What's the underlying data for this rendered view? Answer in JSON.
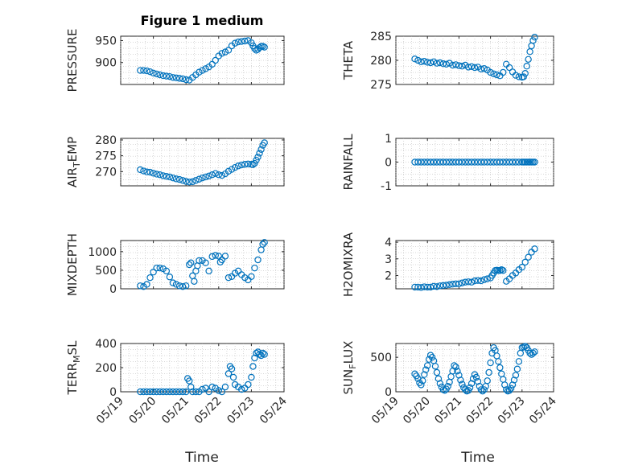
{
  "figure": {
    "title": "Figure 1 medium",
    "xlabel": "Time",
    "xtick_labels": [
      "05/19",
      "05/20",
      "05/21",
      "05/22",
      "05/23",
      "05/24"
    ],
    "marker_color": "#0072BD"
  },
  "chart_data": [
    {
      "type": "scatter",
      "ylabel_main": "PRESSURE",
      "ylabel_sub": "",
      "yticks": [
        900,
        950
      ],
      "ylim": [
        850,
        960
      ],
      "xlim": [
        0,
        5
      ],
      "grid": true,
      "x": [
        0.6,
        0.7,
        0.8,
        0.9,
        1.0,
        1.1,
        1.2,
        1.3,
        1.4,
        1.5,
        1.6,
        1.7,
        1.8,
        1.9,
        2.0,
        2.1,
        2.2,
        2.3,
        2.4,
        2.5,
        2.6,
        2.7,
        2.8,
        2.9,
        3.0,
        3.1,
        3.2,
        3.3,
        3.4,
        3.5,
        3.6,
        3.7,
        3.8,
        3.9,
        4.0,
        4.05,
        4.1,
        4.15,
        4.2,
        4.25,
        4.3,
        4.35,
        4.4
      ],
      "y": [
        882,
        882,
        881,
        879,
        876,
        874,
        872,
        870,
        869,
        868,
        866,
        865,
        864,
        863,
        861,
        860,
        866,
        872,
        878,
        882,
        886,
        890,
        896,
        905,
        915,
        921,
        924,
        928,
        938,
        944,
        947,
        948,
        949,
        950,
        945,
        938,
        932,
        928,
        930,
        934,
        937,
        937,
        935
      ]
    },
    {
      "type": "scatter",
      "ylabel_main": "THETA",
      "ylabel_sub": "",
      "yticks": [
        275,
        280,
        285
      ],
      "ylim": [
        275,
        285
      ],
      "xlim": [
        0,
        5
      ],
      "grid": true,
      "x": [
        0.6,
        0.7,
        0.8,
        0.9,
        1.0,
        1.1,
        1.2,
        1.3,
        1.4,
        1.5,
        1.6,
        1.7,
        1.8,
        1.9,
        2.0,
        2.1,
        2.2,
        2.3,
        2.4,
        2.5,
        2.6,
        2.7,
        2.8,
        2.9,
        3.0,
        3.1,
        3.2,
        3.3,
        3.4,
        3.5,
        3.6,
        3.7,
        3.8,
        3.9,
        4.0,
        4.05,
        4.1,
        4.15,
        4.2,
        4.25,
        4.3,
        4.35,
        4.4
      ],
      "y": [
        280.3,
        280.0,
        279.7,
        279.8,
        279.6,
        279.5,
        279.7,
        279.4,
        279.5,
        279.3,
        279.2,
        279.4,
        279.0,
        279.1,
        278.9,
        278.8,
        279.0,
        278.6,
        278.7,
        278.5,
        278.6,
        278.2,
        278.3,
        278.0,
        277.5,
        277.2,
        277.0,
        276.8,
        277.5,
        279.2,
        278.5,
        277.6,
        276.9,
        276.6,
        276.5,
        276.6,
        277.3,
        278.8,
        280.2,
        281.8,
        283.0,
        284.1,
        284.8
      ]
    },
    {
      "type": "scatter",
      "ylabel_main": "AIR",
      "ylabel_sub": "T",
      "ylabel_tail": "EMP",
      "yticks": [
        270,
        275,
        280
      ],
      "ylim": [
        265.5,
        280.5
      ],
      "xlim": [
        0,
        5
      ],
      "grid": true,
      "x": [
        0.6,
        0.7,
        0.8,
        0.9,
        1.0,
        1.1,
        1.2,
        1.3,
        1.4,
        1.5,
        1.6,
        1.7,
        1.8,
        1.9,
        2.0,
        2.1,
        2.2,
        2.3,
        2.4,
        2.5,
        2.6,
        2.7,
        2.8,
        2.9,
        3.0,
        3.1,
        3.2,
        3.3,
        3.4,
        3.5,
        3.6,
        3.7,
        3.8,
        3.9,
        4.0,
        4.05,
        4.1,
        4.15,
        4.2,
        4.25,
        4.3,
        4.35,
        4.4
      ],
      "y": [
        270.6,
        270.2,
        269.9,
        269.8,
        269.5,
        269.2,
        269.0,
        268.7,
        268.5,
        268.3,
        268.0,
        267.7,
        267.5,
        267.2,
        266.9,
        266.7,
        266.8,
        267.2,
        267.6,
        268.0,
        268.3,
        268.6,
        269.0,
        269.4,
        269.0,
        268.8,
        269.3,
        270.1,
        270.7,
        271.3,
        271.8,
        272.1,
        272.3,
        272.4,
        272.3,
        272.2,
        272.6,
        273.6,
        274.6,
        275.8,
        277.0,
        278.3,
        279.1
      ]
    },
    {
      "type": "scatter",
      "ylabel_main": "RAINFALL",
      "ylabel_sub": "",
      "yticks": [
        -1,
        0,
        1
      ],
      "ylim": [
        -1,
        1
      ],
      "xlim": [
        0,
        5
      ],
      "grid": true,
      "x": [
        0.6,
        0.7,
        0.8,
        0.9,
        1.0,
        1.1,
        1.2,
        1.3,
        1.4,
        1.5,
        1.6,
        1.7,
        1.8,
        1.9,
        2.0,
        2.1,
        2.2,
        2.3,
        2.4,
        2.5,
        2.6,
        2.7,
        2.8,
        2.9,
        3.0,
        3.1,
        3.2,
        3.3,
        3.4,
        3.5,
        3.6,
        3.7,
        3.8,
        3.9,
        4.0,
        4.05,
        4.1,
        4.15,
        4.2,
        4.25,
        4.3,
        4.35,
        4.4
      ],
      "y": [
        0,
        0,
        0,
        0,
        0,
        0,
        0,
        0,
        0,
        0,
        0,
        0,
        0,
        0,
        0,
        0,
        0,
        0,
        0,
        0,
        0,
        0,
        0,
        0,
        0,
        0,
        0,
        0,
        0,
        0,
        0,
        0,
        0,
        0,
        0,
        0,
        0,
        0,
        0,
        0,
        0,
        0,
        0
      ]
    },
    {
      "type": "scatter",
      "ylabel_main": "MIXDEPTH",
      "ylabel_sub": "",
      "yticks": [
        0,
        500,
        1000
      ],
      "ylim": [
        0,
        1300
      ],
      "xlim": [
        0,
        5
      ],
      "grid": true,
      "x": [
        0.6,
        0.7,
        0.8,
        0.9,
        1.0,
        1.1,
        1.2,
        1.3,
        1.4,
        1.5,
        1.6,
        1.7,
        1.8,
        1.9,
        2.0,
        2.1,
        2.15,
        2.2,
        2.25,
        2.3,
        2.35,
        2.4,
        2.5,
        2.6,
        2.7,
        2.8,
        2.9,
        3.0,
        3.05,
        3.1,
        3.2,
        3.3,
        3.4,
        3.5,
        3.6,
        3.7,
        3.8,
        3.9,
        4.0,
        4.1,
        4.2,
        4.3,
        4.35,
        4.4
      ],
      "y": [
        80,
        60,
        120,
        300,
        450,
        560,
        560,
        540,
        480,
        320,
        160,
        120,
        80,
        60,
        80,
        650,
        700,
        350,
        200,
        480,
        620,
        760,
        760,
        700,
        480,
        870,
        900,
        880,
        720,
        780,
        880,
        300,
        330,
        420,
        480,
        380,
        300,
        240,
        330,
        560,
        780,
        1050,
        1200,
        1250
      ]
    },
    {
      "type": "scatter",
      "ylabel_main": "H2OMIXRA",
      "ylabel_sub": "",
      "yticks": [
        2,
        3,
        4
      ],
      "ylim": [
        1.2,
        4.1
      ],
      "xlim": [
        0,
        5
      ],
      "grid": true,
      "x": [
        0.6,
        0.7,
        0.8,
        0.9,
        1.0,
        1.1,
        1.2,
        1.3,
        1.4,
        1.5,
        1.6,
        1.7,
        1.8,
        1.9,
        2.0,
        2.1,
        2.2,
        2.3,
        2.4,
        2.5,
        2.6,
        2.7,
        2.8,
        2.9,
        3.0,
        3.05,
        3.1,
        3.15,
        3.2,
        3.25,
        3.3,
        3.35,
        3.4,
        3.5,
        3.6,
        3.7,
        3.8,
        3.9,
        4.0,
        4.1,
        4.2,
        4.3,
        4.4
      ],
      "y": [
        1.3,
        1.3,
        1.28,
        1.32,
        1.3,
        1.3,
        1.35,
        1.33,
        1.38,
        1.4,
        1.42,
        1.45,
        1.48,
        1.5,
        1.5,
        1.55,
        1.6,
        1.62,
        1.6,
        1.68,
        1.7,
        1.68,
        1.75,
        1.8,
        1.85,
        2.0,
        2.15,
        2.3,
        2.32,
        2.3,
        2.3,
        2.35,
        2.3,
        1.65,
        1.8,
        2.0,
        2.15,
        2.35,
        2.5,
        2.8,
        3.1,
        3.4,
        3.6
      ]
    },
    {
      "type": "scatter",
      "ylabel_main": "TERR",
      "ylabel_sub": "M",
      "ylabel_tail": "SL",
      "yticks": [
        0,
        200,
        400
      ],
      "ylim": [
        0,
        400
      ],
      "xlim": [
        0,
        5
      ],
      "grid": true,
      "x": [
        0.6,
        0.7,
        0.8,
        0.9,
        1.0,
        1.1,
        1.2,
        1.3,
        1.4,
        1.5,
        1.6,
        1.7,
        1.8,
        1.9,
        2.0,
        2.05,
        2.1,
        2.15,
        2.2,
        2.3,
        2.4,
        2.5,
        2.6,
        2.7,
        2.8,
        2.9,
        3.0,
        3.1,
        3.2,
        3.3,
        3.35,
        3.4,
        3.45,
        3.5,
        3.6,
        3.7,
        3.8,
        3.9,
        4.0,
        4.05,
        4.1,
        4.15,
        4.2,
        4.25,
        4.3,
        4.35,
        4.4
      ],
      "y": [
        0,
        0,
        0,
        0,
        0,
        0,
        0,
        0,
        0,
        0,
        0,
        0,
        0,
        0,
        0,
        110,
        90,
        40,
        0,
        0,
        0,
        20,
        30,
        0,
        40,
        30,
        10,
        0,
        40,
        150,
        210,
        190,
        120,
        60,
        40,
        20,
        30,
        60,
        120,
        210,
        280,
        320,
        330,
        310,
        300,
        320,
        310
      ]
    },
    {
      "type": "scatter",
      "ylabel_main": "SUN",
      "ylabel_sub": "F",
      "ylabel_tail": "LUX",
      "yticks": [
        0,
        500
      ],
      "ylim": [
        0,
        700
      ],
      "xlim": [
        0,
        5
      ],
      "grid": true,
      "x": [
        0.6,
        0.65,
        0.7,
        0.75,
        0.8,
        0.85,
        0.9,
        0.95,
        1.0,
        1.05,
        1.1,
        1.15,
        1.2,
        1.25,
        1.3,
        1.35,
        1.4,
        1.45,
        1.5,
        1.55,
        1.6,
        1.65,
        1.7,
        1.75,
        1.8,
        1.85,
        1.9,
        1.95,
        2.0,
        2.05,
        2.1,
        2.15,
        2.2,
        2.25,
        2.3,
        2.35,
        2.4,
        2.45,
        2.5,
        2.55,
        2.6,
        2.65,
        2.7,
        2.75,
        2.8,
        2.85,
        2.9,
        2.95,
        3.0,
        3.05,
        3.1,
        3.15,
        3.2,
        3.25,
        3.3,
        3.35,
        3.4,
        3.45,
        3.5,
        3.55,
        3.6,
        3.65,
        3.7,
        3.75,
        3.8,
        3.85,
        3.9,
        3.95,
        4.0,
        4.05,
        4.1,
        4.15,
        4.2,
        4.25,
        4.3,
        4.35,
        4.4
      ],
      "y": [
        260,
        230,
        190,
        130,
        100,
        160,
        250,
        320,
        380,
        470,
        530,
        500,
        450,
        370,
        280,
        190,
        120,
        70,
        30,
        20,
        40,
        80,
        140,
        220,
        300,
        380,
        360,
        300,
        240,
        170,
        110,
        60,
        30,
        10,
        20,
        60,
        120,
        190,
        250,
        210,
        150,
        80,
        30,
        10,
        30,
        80,
        160,
        280,
        420,
        560,
        640,
        600,
        520,
        440,
        350,
        260,
        180,
        100,
        30,
        10,
        20,
        50,
        100,
        170,
        240,
        330,
        440,
        560,
        640,
        650,
        660,
        640,
        600,
        560,
        540,
        560,
        580
      ]
    }
  ]
}
